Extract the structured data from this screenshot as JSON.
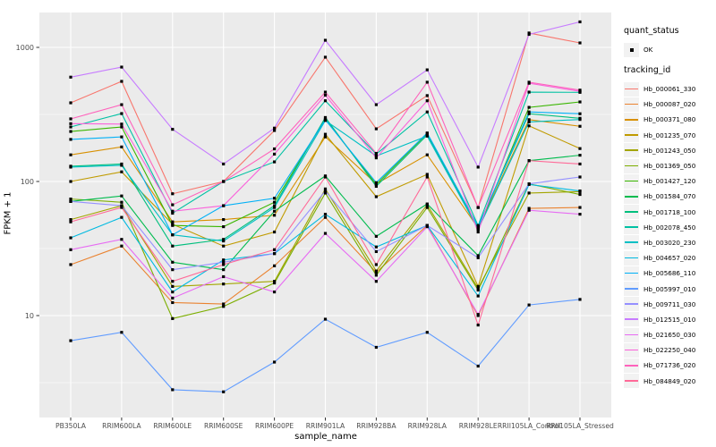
{
  "chart_data": {
    "type": "line",
    "title": "",
    "xlabel": "sample_name",
    "ylabel": "FPKM + 1",
    "yscale": "log10",
    "ylim": [
      1.7,
      1820
    ],
    "yticks": [
      10,
      100,
      1000
    ],
    "ytick_labels": [
      "10",
      "100",
      "1000"
    ],
    "minor_gridlines_at": [
      3.162,
      31.62,
      316.2
    ],
    "grid": true,
    "legend_position": "right",
    "point_color": "#000000",
    "panel_background": "#EBEBEB",
    "grid_color": "#FFFFFF",
    "axis_text_color": "#4D4D4D",
    "categories": [
      "PB350LA",
      "RRIM600LA",
      "RRIM600LE",
      "RRIM600SE",
      "RRIM600PE",
      "RRIM901LA",
      "RRIM928BA",
      "RRIM928LA",
      "RRIM928LE",
      "RRII105LA_Control",
      "RRII105LA_Stressed"
    ],
    "series": [
      {
        "name": "Hb_000061_330",
        "color": "#F8766D",
        "values": [
          386,
          558,
          81,
          100,
          240,
          845,
          247,
          437,
          64,
          1280,
          1080
        ]
      },
      {
        "name": "Hb_000087_020",
        "color": "#EA8331",
        "values": [
          24,
          33,
          12.5,
          12.2,
          23.5,
          54,
          21,
          47,
          10,
          63,
          64
        ]
      },
      {
        "name": "Hb_000371_080",
        "color": "#D89000",
        "values": [
          158,
          181,
          50,
          52,
          56,
          215,
          96,
          158,
          45,
          289,
          258
        ]
      },
      {
        "name": "Hb_001235_070",
        "color": "#C09B00",
        "values": [
          100,
          118,
          48,
          33,
          42,
          225,
          77,
          113,
          16.5,
          260,
          176
        ]
      },
      {
        "name": "Hb_001243_050",
        "color": "#A3A500",
        "values": [
          52,
          66,
          16.5,
          17.2,
          18,
          88,
          21.5,
          67,
          16,
          82,
          84
        ]
      },
      {
        "name": "Hb_001369_050",
        "color": "#7CAE00",
        "values": [
          74,
          70,
          9.5,
          11.7,
          17.5,
          82,
          20,
          64,
          15.5,
          96,
          80
        ]
      },
      {
        "name": "Hb_001427_120",
        "color": "#39B600",
        "values": [
          236,
          255,
          47,
          46,
          70,
          292,
          95,
          228,
          44,
          357,
          392
        ]
      },
      {
        "name": "Hb_001584_070",
        "color": "#00BB4E",
        "values": [
          71,
          78,
          25,
          22,
          60,
          110,
          39,
          68,
          28,
          143,
          157
        ]
      },
      {
        "name": "Hb_001718_100",
        "color": "#00BF7D",
        "values": [
          130,
          135,
          33,
          37,
          66,
          300,
          92,
          222,
          46,
          320,
          296
        ]
      },
      {
        "name": "Hb_002078_450",
        "color": "#00C1A3",
        "values": [
          255,
          321,
          58,
          100,
          140,
          400,
          160,
          330,
          47,
          464,
          462
        ]
      },
      {
        "name": "Hb_003020_230",
        "color": "#00BFC4",
        "values": [
          128,
          132,
          40,
          36,
          64,
          285,
          155,
          218,
          44,
          278,
          290
        ]
      },
      {
        "name": "Hb_004657_020",
        "color": "#00BAE0",
        "values": [
          38,
          54,
          15,
          26,
          29,
          57,
          32.5,
          47,
          14,
          95,
          85
        ]
      },
      {
        "name": "Hb_005686_110",
        "color": "#00B0F6",
        "values": [
          206,
          215,
          40,
          66,
          75,
          288,
          98,
          230,
          46,
          330,
          320
        ]
      },
      {
        "name": "Hb_005997_010",
        "color": "#619CFF",
        "values": [
          6.5,
          7.5,
          2.8,
          2.7,
          4.5,
          9.4,
          5.8,
          7.5,
          4.2,
          12,
          13.2
        ]
      },
      {
        "name": "Hb_009711_030",
        "color": "#9590FF",
        "values": [
          71,
          66,
          22,
          25,
          29,
          85,
          30,
          47,
          27,
          96,
          108
        ]
      },
      {
        "name": "Hb_012515_010",
        "color": "#C77CFF",
        "values": [
          600,
          713,
          245,
          135,
          250,
          1130,
          374,
          680,
          128,
          1250,
          1550
        ]
      },
      {
        "name": "Hb_021650_030",
        "color": "#E76BF3",
        "values": [
          31,
          37,
          13.5,
          19.5,
          15,
          41,
          18,
          46,
          10.2,
          61,
          57
        ]
      },
      {
        "name": "Hb_022250_040",
        "color": "#FA62DB",
        "values": [
          270,
          268,
          60,
          66,
          160,
          440,
          150,
          400,
          42,
          540,
          470
        ]
      },
      {
        "name": "Hb_071736_020",
        "color": "#FF62BC",
        "values": [
          293,
          374,
          67,
          100,
          175,
          464,
          162,
          550,
          64,
          550,
          480
        ]
      },
      {
        "name": "Hb_084849_020",
        "color": "#FF6A98",
        "values": [
          50,
          64,
          18,
          24,
          31,
          108,
          24,
          108,
          8.5,
          143,
          135
        ]
      }
    ]
  },
  "legend": {
    "quant_status_title": "quant_status",
    "quant_status_items": [
      {
        "label": "OK",
        "symbol": "black-point"
      }
    ],
    "tracking_id_title": "tracking_id"
  }
}
